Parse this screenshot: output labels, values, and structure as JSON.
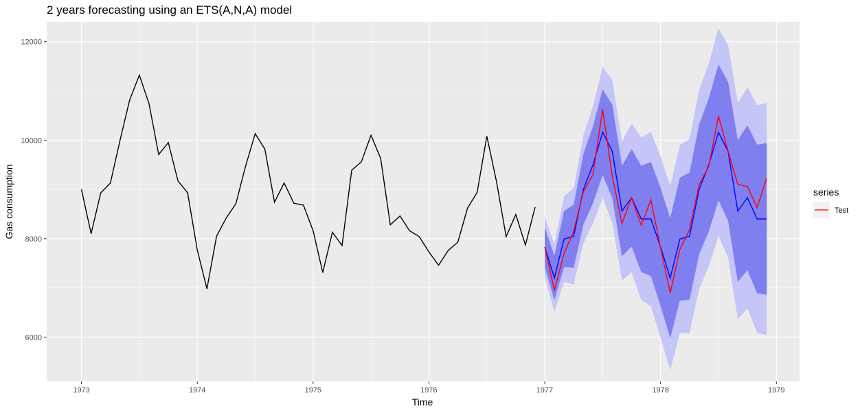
{
  "chart_data": {
    "type": "line",
    "title": "2 years forecasting using an ETS(A,N,A) model",
    "xlabel": "Time",
    "ylabel": "Gas consumption",
    "xlim": [
      1972.7,
      1979.2
    ],
    "ylim": [
      5100,
      12400
    ],
    "x_ticks": [
      1973,
      1974,
      1975,
      1976,
      1977,
      1978,
      1979
    ],
    "y_ticks": [
      6000,
      8000,
      10000,
      12000
    ],
    "grid": true,
    "legend": {
      "title": "series",
      "position": "right",
      "entries": [
        {
          "label": "Test",
          "color": "#ff0000"
        }
      ]
    },
    "colors": {
      "panel_bg": "#ebebeb",
      "grid_major": "#ffffff",
      "history": "#000000",
      "forecast": "#0000ff",
      "test": "#ff0000",
      "band80": "#7f7ff0",
      "band95": "#c5c5f7"
    },
    "series": [
      {
        "role": "history",
        "x_start": 1973.0,
        "step": 0.08333333,
        "values": [
          9000,
          8100,
          8930,
          9130,
          10000,
          10820,
          11320,
          10740,
          9710,
          9950,
          9170,
          8930,
          7770,
          6980,
          8050,
          8420,
          8710,
          9470,
          10130,
          9820,
          8740,
          9130,
          8720,
          8680,
          8160,
          7310,
          8130,
          7860,
          9390,
          9560,
          10100,
          9630,
          8280,
          8460,
          8160,
          8040,
          7730,
          7460,
          7760,
          7930,
          8620,
          8940,
          10080,
          9160,
          8040,
          8490,
          7870,
          8640
        ]
      },
      {
        "role": "forecast",
        "x_start": 1977.0,
        "step": 0.08333333,
        "values": [
          7830,
          7200,
          7990,
          8050,
          9000,
          9500,
          10160,
          9770,
          8560,
          8830,
          8400,
          8400,
          7830,
          7200,
          7990,
          8050,
          9000,
          9500,
          10160,
          9770,
          8560,
          8830,
          8400,
          8400
        ],
        "lo80": [
          7430,
          6750,
          7420,
          7410,
          8280,
          8720,
          9290,
          8820,
          7640,
          7840,
          7320,
          7240,
          6630,
          5980,
          6740,
          6760,
          7680,
          8150,
          8780,
          8360,
          7120,
          7360,
          6890,
          6860
        ],
        "hi80": [
          8230,
          7650,
          8560,
          8690,
          9720,
          10280,
          11030,
          10720,
          9480,
          9820,
          9480,
          9560,
          9030,
          8420,
          9240,
          9340,
          10320,
          10850,
          11540,
          11180,
          10000,
          10300,
          9910,
          9940
        ],
        "lo95": [
          7220,
          6510,
          7120,
          7070,
          7900,
          8310,
          8830,
          8320,
          7150,
          7320,
          6750,
          6630,
          5990,
          5330,
          6080,
          6080,
          6980,
          7440,
          8050,
          7610,
          6360,
          6580,
          6090,
          6040
        ],
        "hi95": [
          8440,
          7890,
          8860,
          9030,
          10100,
          10690,
          11490,
          11220,
          9970,
          10340,
          10050,
          10170,
          9670,
          9070,
          9900,
          10020,
          11020,
          11560,
          12270,
          11930,
          10760,
          11080,
          10710,
          10760
        ]
      },
      {
        "name": "Test",
        "role": "test",
        "x_start": 1977.0,
        "step": 0.08333333,
        "values": [
          7830,
          6950,
          7700,
          8150,
          8950,
          9300,
          10620,
          9270,
          8310,
          8830,
          8270,
          8790,
          7810,
          6900,
          7780,
          8180,
          9100,
          9470,
          10490,
          9770,
          9100,
          9060,
          8630,
          9230
        ]
      }
    ]
  }
}
